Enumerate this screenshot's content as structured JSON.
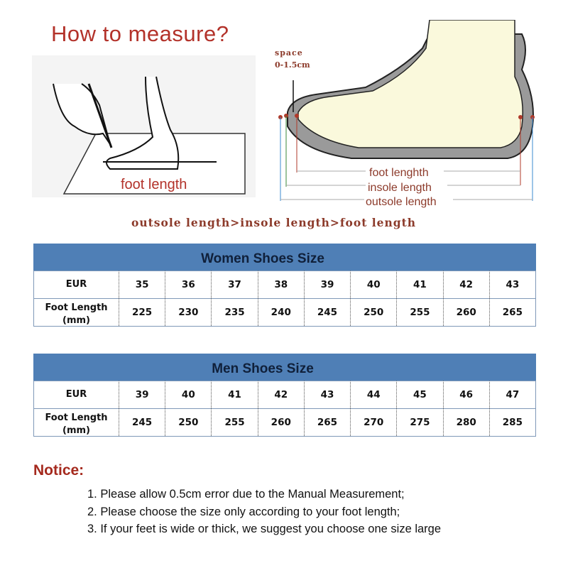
{
  "header": {
    "title": "How to measure?"
  },
  "left_illustration": {
    "label": "foot length"
  },
  "right_illustration": {
    "space_label": "space",
    "space_value": "0-1.5cm",
    "foot_length_label": "foot lenghth",
    "insole_length_label": "insole length",
    "outsole_length_label": "outsole length"
  },
  "comparison": "outsole length>insole length>foot length",
  "women_table": {
    "title": "Women Shoes Size",
    "row_labels": [
      "EUR",
      "Foot Length (mm)"
    ],
    "eur": [
      "35",
      "36",
      "37",
      "38",
      "39",
      "40",
      "41",
      "42",
      "43"
    ],
    "foot_length": [
      "225",
      "230",
      "235",
      "240",
      "245",
      "250",
      "255",
      "260",
      "265"
    ]
  },
  "men_table": {
    "title": "Men Shoes Size",
    "row_labels": [
      "EUR",
      "Foot Length (mm)"
    ],
    "eur": [
      "39",
      "40",
      "41",
      "42",
      "43",
      "44",
      "45",
      "46",
      "47"
    ],
    "foot_length": [
      "245",
      "250",
      "255",
      "260",
      "265",
      "270",
      "275",
      "280",
      "285"
    ]
  },
  "notice": {
    "title": "Notice:",
    "items": [
      "1. Please allow 0.5cm error due to the Manual Measurement;",
      "2. Please choose the size only according to your foot length;",
      "3. If your feet is wide or thick, we suggest you choose one size large"
    ]
  },
  "colors": {
    "table_header": "#4f7fb6",
    "title_red": "#b3322a",
    "label_brown": "#8c3a2a"
  }
}
